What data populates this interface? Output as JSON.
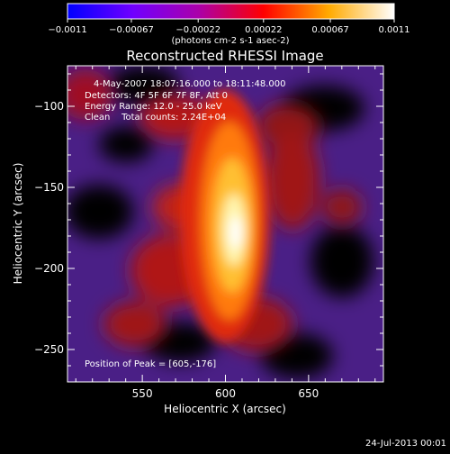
{
  "chart_data": {
    "type": "heatmap",
    "title": "Reconstructed RHESSI Image",
    "xlabel": "Heliocentric X (arcsec)",
    "ylabel": "Heliocentric Y (arcsec)",
    "xlim": [
      505,
      695
    ],
    "ylim": [
      -270,
      -75
    ],
    "xticks": [
      550,
      600,
      650
    ],
    "yticks": [
      -100,
      -150,
      -200,
      -250
    ],
    "colorbar": {
      "range": [
        -0.0011,
        0.0011
      ],
      "ticks": [
        "-0.0011",
        "-0.00067",
        "-0.00022",
        "0.00022",
        "0.00067",
        "0.0011"
      ],
      "colors": [
        "#0000ff",
        "#7000ff",
        "#aa00aa",
        "#ff0000",
        "#ffaa00",
        "#ffffff"
      ]
    },
    "colorbar_unit": "(photons cm-2 s-1 asec-2)",
    "annotations": [
      "4-May-2007 18:07:16.000 to 18:11:48.000",
      "Detectors: 4F 5F 6F 7F 8F, Att 0",
      "Energy Range: 12.0 - 25.0 keV",
      "Clean    Total counts: 2.24E+04"
    ],
    "peak_label": "Position of Peak = [605,-176]",
    "peak": [
      605,
      -176
    ],
    "footer_date": "24-Jul-2013 00:01"
  }
}
